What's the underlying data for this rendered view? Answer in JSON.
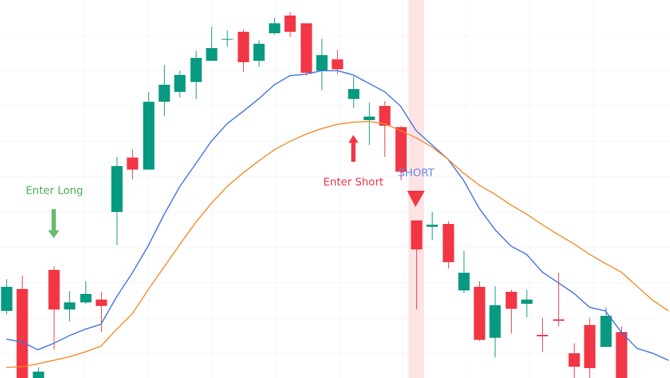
{
  "chart_data": {
    "type": "candlestick",
    "x": [
      0,
      1,
      2,
      3,
      4,
      5,
      6,
      7,
      8,
      9,
      10,
      11,
      12,
      13,
      14,
      15,
      16,
      17,
      18,
      19,
      20,
      21,
      22,
      23,
      24,
      25,
      26,
      27,
      28,
      29,
      30,
      31,
      32,
      33,
      34,
      35,
      36,
      37,
      38,
      39
    ],
    "open": [
      95,
      126,
      0,
      153,
      97,
      107,
      111,
      235,
      312,
      295,
      391,
      405,
      419,
      449,
      479,
      490,
      449,
      488,
      513,
      502,
      435,
      451,
      395,
      365,
      385,
      355,
      223,
      214,
      218,
      124,
      129,
      57,
      122,
      105,
      61,
      83,
      35,
      75,
      44,
      65
    ],
    "high": [
      140,
      145,
      15,
      158,
      123,
      137,
      122,
      313,
      323,
      405,
      443,
      435,
      463,
      497,
      492,
      493,
      478,
      510,
      518,
      502,
      480,
      464,
      427,
      390,
      392,
      357,
      223,
      235,
      222,
      180,
      137,
      130,
      125,
      125,
      85,
      149,
      49,
      85,
      100,
      73
    ],
    "low": [
      90,
      0,
      0,
      40,
      80,
      105,
      65,
      188,
      281,
      295,
      371,
      397,
      395,
      449,
      469,
      433,
      440,
      486,
      483,
      428,
      407,
      430,
      382,
      330,
      313,
      280,
      97,
      195,
      155,
      120,
      52,
      29,
      63,
      86,
      37,
      73,
      0,
      0,
      44,
      0
    ],
    "close": [
      129,
      0,
      9,
      97,
      107,
      119,
      102,
      300,
      295,
      391,
      415,
      429,
      453,
      467,
      480,
      447,
      473,
      502,
      490,
      432,
      457,
      437,
      409,
      370,
      357,
      292,
      182,
      217,
      164,
      149,
      54,
      103,
      98,
      111,
      59,
      81,
      16,
      14,
      88,
      0
    ],
    "up_color": "#089981",
    "down_color": "#f23645",
    "series": [
      {
        "color": "#3c6ee6",
        "x": [
          0,
          1,
          2,
          3,
          4,
          5,
          6,
          7,
          8,
          9,
          10,
          11,
          12,
          13,
          14,
          15,
          16,
          17,
          18,
          19,
          20,
          21,
          22,
          23,
          24,
          25,
          26,
          27,
          28,
          29,
          30,
          31,
          32,
          33,
          34,
          35,
          36,
          37,
          38,
          39,
          40,
          41,
          42
        ],
        "values": [
          55,
          51,
          40,
          49,
          60,
          69,
          76,
          115,
          149,
          187,
          231,
          271,
          303,
          335,
          360,
          377,
          395,
          415,
          428,
          430,
          435,
          435,
          429,
          417,
          405,
          385,
          350,
          330,
          310,
          280,
          240,
          210,
          187,
          175,
          150,
          135,
          120,
          100,
          95,
          65,
          42,
          35,
          25
        ]
      },
      {
        "color": "#f5891f",
        "x": [
          0,
          1,
          2,
          3,
          4,
          5,
          6,
          7,
          8,
          9,
          10,
          11,
          12,
          13,
          14,
          15,
          16,
          17,
          18,
          19,
          20,
          21,
          22,
          23,
          24,
          25,
          26,
          27,
          28,
          29,
          30,
          31,
          32,
          33,
          34,
          35,
          36,
          37,
          38,
          39,
          40,
          41,
          42
        ],
        "values": [
          15,
          16,
          20,
          25,
          30,
          37,
          45,
          69,
          91,
          125,
          157,
          189,
          220,
          247,
          271,
          290,
          307,
          323,
          335,
          345,
          353,
          359,
          362,
          363,
          360,
          350,
          340,
          327,
          310,
          290,
          273,
          260,
          245,
          232,
          217,
          203,
          190,
          175,
          162,
          150,
          130,
          110,
          95
        ]
      }
    ],
    "xlim": [
      -0.404,
      42.1
    ],
    "ylim": [
      0,
      535
    ],
    "annotations": [
      {
        "text": "Enter Long"
      },
      {
        "text": "Enter Short"
      },
      {
        "text": "SHORT"
      }
    ]
  }
}
